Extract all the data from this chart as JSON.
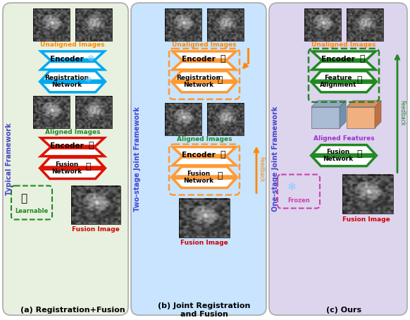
{
  "panel_a": {
    "bg_color": "#e8f0e0",
    "title": "Typical Framework",
    "title_color": "#4444cc",
    "subtitle": "(a) Registration+Fusion",
    "top_label": "Unaligned Images",
    "top_label_color": "#ff8800",
    "mid_label": "Aligned Images",
    "mid_label_color": "#228822",
    "bot_label": "Fusion Image",
    "bot_label_color": "#cc0000",
    "enc1_color": "#00aaee",
    "enc1_text": "Encoder",
    "reg_color": "#00aaee",
    "reg_text": "Registration\nNetwork",
    "enc2_color": "#dd1100",
    "enc2_text": "Encoder",
    "fusion_color": "#dd1100",
    "fusion_text": "Fusion\nNetwork",
    "learnable_text": "Learnable",
    "learnable_color": "#228822"
  },
  "panel_b": {
    "bg_color": "#c8e4ff",
    "title": "Two-stage Joint Framework",
    "title_color": "#4444cc",
    "subtitle": "(b) Joint Registration\nand Fusion",
    "top_label": "Unaligned Images",
    "top_label_color": "#ff8800",
    "mid_label": "Aligned Images",
    "mid_label_color": "#228822",
    "bot_label": "Fusion Image",
    "bot_label_color": "#cc0000",
    "box_color": "#ff9933",
    "enc1_text": "Encoder",
    "reg_text": "Registration\nNetwork",
    "enc2_text": "Encoder",
    "fusion_text": "Fusion\nNetwork",
    "feedback_color": "#ff8800",
    "feedback_text": "Feedback"
  },
  "panel_c": {
    "bg_color": "#ddd4ee",
    "title": "One-stage Joint Framework",
    "title_color": "#4444cc",
    "subtitle": "(c) Ours",
    "top_label": "Unaligned Images",
    "top_label_color": "#ff8800",
    "mid_label": "Aligned Features",
    "mid_label_color": "#9933cc",
    "bot_label": "Fusion Image",
    "bot_label_color": "#cc0000",
    "box_color": "#228822",
    "encoder_text": "Encoder",
    "align_text": "Feature\nAlignment",
    "fusion_text": "Fusion\nNetwork",
    "frozen_text": "Frozen",
    "frozen_color": "#cc44aa",
    "feedback_color": "#228822",
    "feedback_text": "Feedback"
  }
}
